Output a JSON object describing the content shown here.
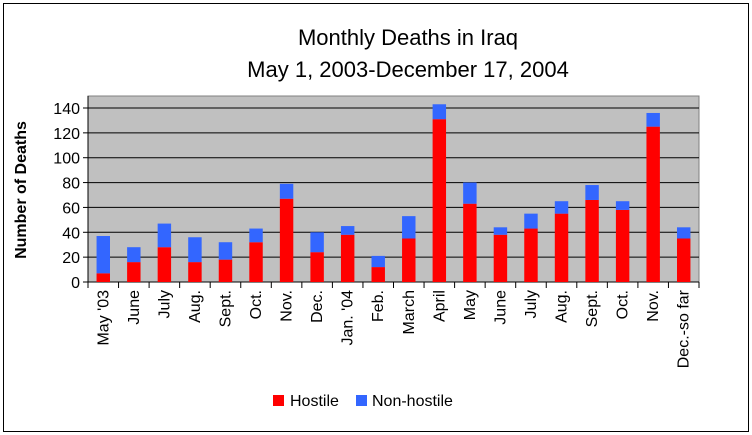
{
  "chart_data": {
    "type": "bar",
    "stacked": true,
    "title": "Monthly Deaths in Iraq",
    "subtitle": "May 1, 2003-December 17, 2004",
    "xlabel": "",
    "ylabel": "Number of Deaths",
    "ylim": [
      0,
      140
    ],
    "yticks": [
      0,
      20,
      40,
      60,
      80,
      100,
      120,
      140
    ],
    "grid": true,
    "legend_position": "bottom",
    "categories": [
      "May '03",
      "June",
      "July",
      "Aug.",
      "Sept.",
      "Oct.",
      "Nov.",
      "Dec.",
      "Jan. '04",
      "Feb.",
      "March",
      "April",
      "May",
      "June",
      "July",
      "Aug.",
      "Sept.",
      "Oct.",
      "Nov.",
      "Dec.-so far"
    ],
    "series": [
      {
        "name": "Hostile",
        "color": "#ff0000",
        "values": [
          7,
          16,
          28,
          16,
          18,
          32,
          67,
          24,
          38,
          12,
          35,
          131,
          63,
          38,
          43,
          55,
          66,
          58,
          125,
          35
        ]
      },
      {
        "name": "Non-hostile",
        "color": "#3366ff",
        "values": [
          30,
          12,
          19,
          20,
          14,
          11,
          12,
          16,
          7,
          9,
          18,
          12,
          17,
          6,
          12,
          10,
          12,
          7,
          11,
          9
        ]
      }
    ],
    "plot_background": "#c0c0c0"
  }
}
